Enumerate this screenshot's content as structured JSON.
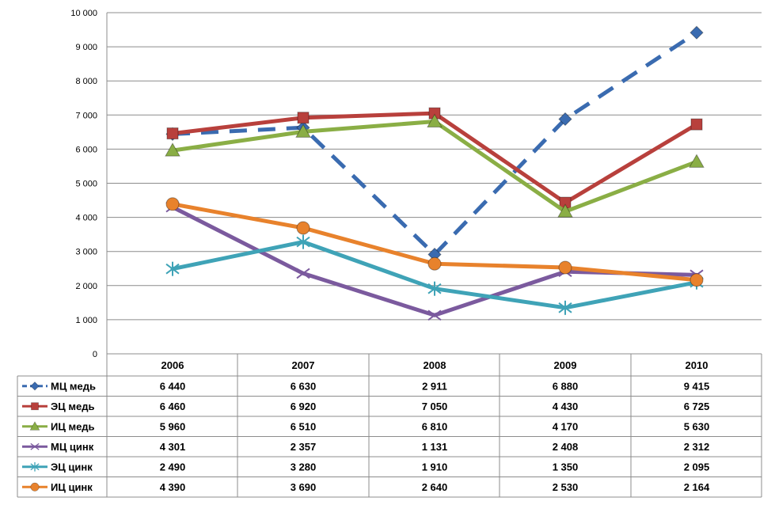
{
  "chart_data": {
    "type": "line",
    "categories": [
      "2006",
      "2007",
      "2008",
      "2009",
      "2010"
    ],
    "ylim": [
      0,
      10000
    ],
    "yticks": [
      "0",
      "1 000",
      "2 000",
      "3 000",
      "4 000",
      "5 000",
      "6 000",
      "7 000",
      "8 000",
      "9 000",
      "10 000"
    ],
    "grid": true,
    "legend": "data table",
    "series": [
      {
        "name": "МЦ медь",
        "values": [
          6440,
          6630,
          2911,
          6880,
          9415
        ],
        "labels": [
          "6 440",
          "6 630",
          "2 911",
          "6 880",
          "9 415"
        ],
        "color": "#3A6BB0",
        "marker": "diamond",
        "dashed": true
      },
      {
        "name": "ЭЦ медь",
        "values": [
          6460,
          6920,
          7050,
          4430,
          6725
        ],
        "labels": [
          "6 460",
          "6 920",
          "7 050",
          "4 430",
          "6 725"
        ],
        "color": "#B8403C",
        "marker": "square",
        "dashed": false
      },
      {
        "name": "ИЦ медь",
        "values": [
          5960,
          6510,
          6810,
          4170,
          5630
        ],
        "labels": [
          "5 960",
          "6 510",
          "6 810",
          "4 170",
          "5 630"
        ],
        "color": "#8AAE45",
        "marker": "triangle",
        "dashed": false
      },
      {
        "name": "МЦ цинк",
        "values": [
          4301,
          2357,
          1131,
          2408,
          2312
        ],
        "labels": [
          "4 301",
          "2 357",
          "1 131",
          "2 408",
          "2 312"
        ],
        "color": "#7B5A9E",
        "marker": "x",
        "dashed": false
      },
      {
        "name": "ЭЦ цинк",
        "values": [
          2490,
          3280,
          1910,
          1350,
          2095
        ],
        "labels": [
          "2 490",
          "3 280",
          "1 910",
          "1 350",
          "2 095"
        ],
        "color": "#3FA3B7",
        "marker": "asterisk",
        "dashed": false
      },
      {
        "name": "ИЦ цинк",
        "values": [
          4390,
          3690,
          2640,
          2530,
          2164
        ],
        "labels": [
          "4 390",
          "3 690",
          "2 640",
          "2 530",
          "2 164"
        ],
        "color": "#E8822C",
        "marker": "circle",
        "dashed": false
      }
    ]
  }
}
